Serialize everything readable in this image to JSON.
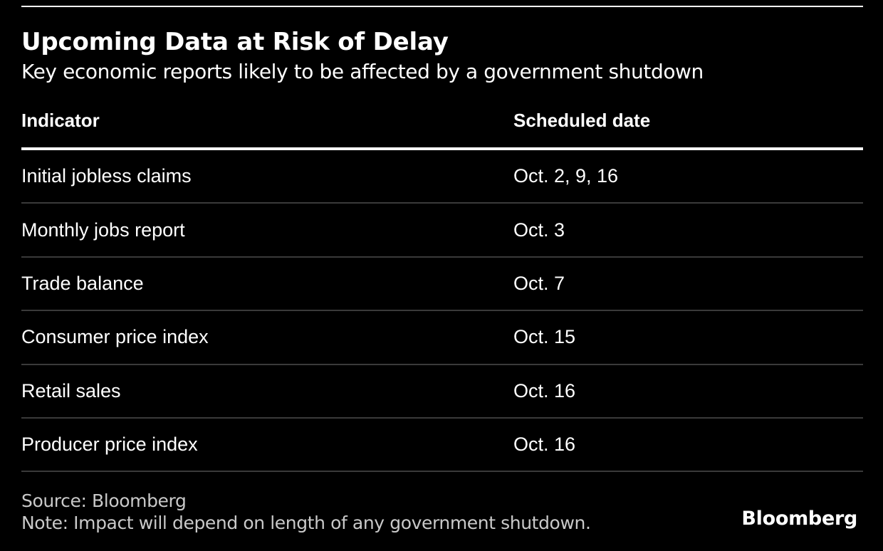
{
  "chart_data": {
    "type": "table",
    "title": "Upcoming Data at Risk of Delay",
    "subtitle": "Key economic reports likely to be affected by a government shutdown",
    "columns": [
      "Indicator",
      "Scheduled date"
    ],
    "rows": [
      [
        "Initial jobless claims",
        "Oct. 2, 9, 16"
      ],
      [
        "Monthly jobs report",
        "Oct. 3"
      ],
      [
        "Trade balance",
        "Oct. 7"
      ],
      [
        "Consumer price index",
        "Oct. 15"
      ],
      [
        "Retail sales",
        "Oct. 16"
      ],
      [
        "Producer price index",
        "Oct. 16"
      ]
    ],
    "source": "Source: Bloomberg",
    "note": "Note: Impact will depend on length of any government shutdown.",
    "layout": {
      "legend": "none",
      "grid": "horizontal-row-dividers",
      "header_rule": "thick-white",
      "theme": "dark"
    }
  },
  "footer": {
    "brand": "Bloomberg"
  },
  "colors": {
    "background": "#000000",
    "text": "#ffffff",
    "row_divider": "#3a3a3a",
    "header_rule": "#ffffff",
    "footnote_text": "#c9c9c9"
  }
}
